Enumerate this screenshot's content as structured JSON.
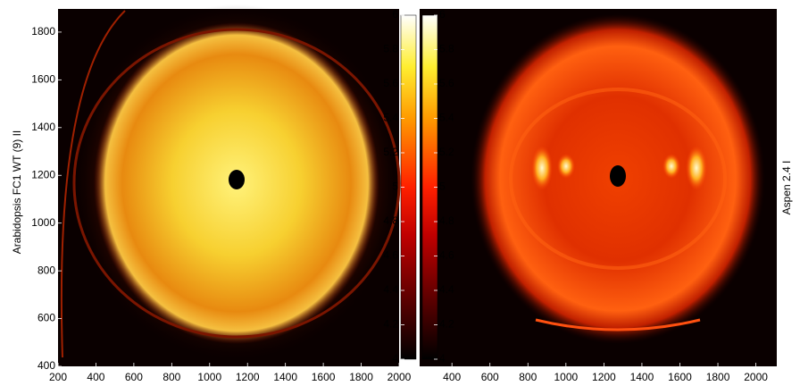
{
  "chart_data": [
    {
      "type": "image",
      "ylabel": "Arabidopsis FC1 WT (9) II",
      "xlim": [
        200,
        2000
      ],
      "xticks": [
        200,
        400,
        600,
        800,
        1000,
        1200,
        1400,
        1600,
        1800,
        2000
      ],
      "ylim": [
        400,
        1897
      ],
      "yticks": [
        400,
        600,
        800,
        1000,
        1200,
        1400,
        1600,
        1800
      ],
      "colorbar": {
        "clim": [
          4,
          6
        ],
        "ticks": [
          4,
          4.2,
          4.4,
          4.6,
          4.8,
          5,
          5.2,
          5.4,
          5.6,
          5.8,
          6
        ]
      }
    },
    {
      "type": "image",
      "ylabel": "Aspen 2.4 I",
      "xlim": [
        230,
        2110
      ],
      "xticks": [
        400,
        600,
        800,
        1000,
        1200,
        1400,
        1600,
        1800,
        2000
      ],
      "colorbar": {
        "clim": [
          4,
          6
        ],
        "ticks": [
          4,
          4.2,
          4.4,
          4.6,
          4.8,
          5,
          5.2,
          5.4,
          5.6,
          5.8,
          6
        ]
      }
    }
  ]
}
